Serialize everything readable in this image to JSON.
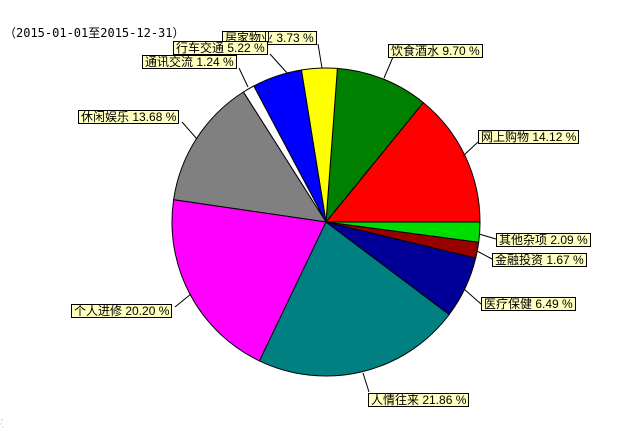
{
  "title": "（2015-01-01至2015-12-31）",
  "chart_data": {
    "type": "pie",
    "title": "（2015-01-01至2015-12-31）",
    "unit": "%",
    "start_angle_deg": 0,
    "direction": "counterclockwise",
    "legend_position": "callout-labels",
    "label_format": "{name} {value} %",
    "label_style": {
      "bg": "#FFFFC0",
      "border": "#000000",
      "text": "#000000"
    },
    "slices": [
      {
        "name": "网上购物",
        "value": 14.12,
        "color": "#FF0000"
      },
      {
        "name": "饮食酒水",
        "value": 9.7,
        "color": "#008000"
      },
      {
        "name": "居家物业",
        "value": 3.73,
        "color": "#FFFF00"
      },
      {
        "name": "行车交通",
        "value": 5.22,
        "color": "#0000FF"
      },
      {
        "name": "通讯交流",
        "value": 1.24,
        "color": "#FFFFFF"
      },
      {
        "name": "休闲娱乐",
        "value": 13.68,
        "color": "#808080"
      },
      {
        "name": "个人进修",
        "value": 20.2,
        "color": "#FF00FF"
      },
      {
        "name": "人情往来",
        "value": 21.86,
        "color": "#008080"
      },
      {
        "name": "医疗保健",
        "value": 6.49,
        "color": "#000099"
      },
      {
        "name": "金融投资",
        "value": 1.67,
        "color": "#990000"
      },
      {
        "name": "其他杂项",
        "value": 2.09,
        "color": "#00DD00"
      }
    ]
  }
}
